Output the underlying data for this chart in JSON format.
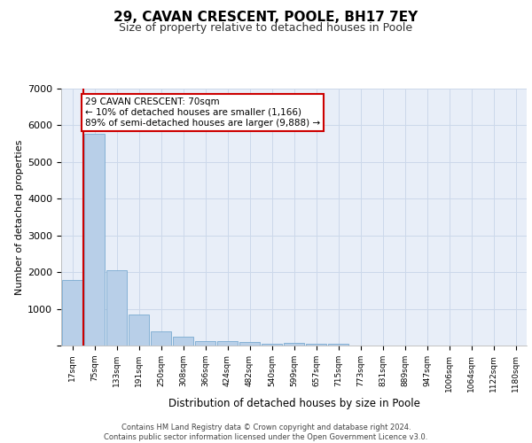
{
  "title1": "29, CAVAN CRESCENT, POOLE, BH17 7EY",
  "title2": "Size of property relative to detached houses in Poole",
  "xlabel": "Distribution of detached houses by size in Poole",
  "ylabel": "Number of detached properties",
  "categories": [
    "17sqm",
    "75sqm",
    "133sqm",
    "191sqm",
    "250sqm",
    "308sqm",
    "366sqm",
    "424sqm",
    "482sqm",
    "540sqm",
    "599sqm",
    "657sqm",
    "715sqm",
    "773sqm",
    "831sqm",
    "889sqm",
    "947sqm",
    "1006sqm",
    "1064sqm",
    "1122sqm",
    "1180sqm"
  ],
  "values": [
    1780,
    5780,
    2060,
    840,
    380,
    230,
    130,
    130,
    90,
    60,
    70,
    60,
    60,
    0,
    0,
    0,
    0,
    0,
    0,
    0,
    0
  ],
  "bar_color": "#b8cfe8",
  "bar_edge_color": "#7aaad0",
  "annotation_title": "29 CAVAN CRESCENT: 70sqm",
  "annotation_line1": "← 10% of detached houses are smaller (1,166)",
  "annotation_line2": "89% of semi-detached houses are larger (9,888) →",
  "annotation_box_color": "#ffffff",
  "annotation_box_edge": "#cc0000",
  "footer1": "Contains HM Land Registry data © Crown copyright and database right 2024.",
  "footer2": "Contains public sector information licensed under the Open Government Licence v3.0.",
  "grid_color": "#ccd8ea",
  "bg_color": "#e8eef8",
  "ylim": [
    0,
    7000
  ],
  "yticks": [
    0,
    1000,
    2000,
    3000,
    4000,
    5000,
    6000,
    7000
  ],
  "vline_color": "#cc0000",
  "title1_fontsize": 11,
  "title2_fontsize": 9
}
